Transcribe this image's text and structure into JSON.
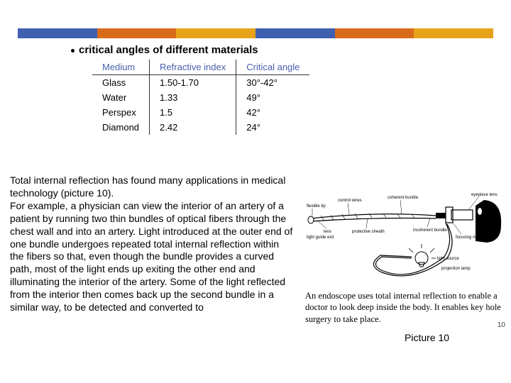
{
  "topbar_colors": [
    "#3f5fb0",
    "#d86b1a",
    "#e8a21a",
    "#3f5fb0",
    "#d86b1a",
    "#e8a21a"
  ],
  "title": "critical angles of different materials",
  "table": {
    "headers": [
      "Medium",
      "Refractive index",
      "Critical angle"
    ],
    "rows": [
      [
        "Glass",
        "1.50-1.70",
        "30°-42°"
      ],
      [
        "Water",
        "1.33",
        "49°"
      ],
      [
        "Perspex",
        "1.5",
        "42°"
      ],
      [
        "Diamond",
        "2.42",
        "24°"
      ]
    ]
  },
  "body": "Total internal reflection has found many applications in medical technology (picture 10).\nFor example, a physician can view the interior of an artery of a patient by running two thin bundles of optical fibers through the chest wall and into an artery. Light introduced at the outer end of one bundle undergoes repeated total internal reflection within the fibers so that, even though the bundle provides a curved path, most of the light ends up exiting the other end and illuminating the interior of the artery. Some of the light reflected from the interior then comes back up the second bundle in a similar way, to be detected and converted to",
  "diagram_labels": {
    "flexible_tip": "flexible tip",
    "control_wires": "control wires",
    "coherent_bundle": "coherent bundle",
    "eyepiece_lens": "eyepiece lens",
    "lens": "lens",
    "protective_sheath": "protective sheath",
    "incoherent_bundle": "incoherent bundle",
    "focusing_ring": "focusing ring",
    "light_guide_exit": "light guide exit",
    "light_source": "light source",
    "projection_lamp": "projection lamp"
  },
  "caption": "An endoscope uses total internal reflection to enable a doctor to look deep inside the body. It enables key hole surgery to take place.",
  "picture_label": "Picture 10",
  "page_number": "10"
}
